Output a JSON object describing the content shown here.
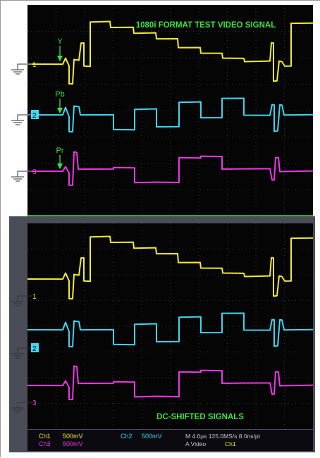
{
  "top_panel": {
    "title": "1080i FORMAT TEST VIDEO SIGNAL",
    "labels": {
      "y": "Y",
      "pb": "Pb",
      "pr": "Pr"
    }
  },
  "bottom_panel": {
    "title": "DC-SHIFTED SIGNALS"
  },
  "channel_markers": [
    "1",
    "2",
    "3"
  ],
  "status_bar": {
    "ch1_label": "Ch1",
    "ch1_value": "500mV",
    "ch3_label": "Ch3",
    "ch3_value": "500mV",
    "ch2_label": "Ch2",
    "ch2_value": "500mV",
    "timebase": "M 4.0µs 125.0MS/s  8.0ns/pt",
    "trigger": "A  Video",
    "trigger_source": "Ch1"
  },
  "colors": {
    "y": "#f2ec2e",
    "pb": "#3ed6f0",
    "pr": "#ee36e6",
    "label_green": "#3fe03f",
    "grid": "#5a5a5a",
    "screen": "#050505"
  }
}
